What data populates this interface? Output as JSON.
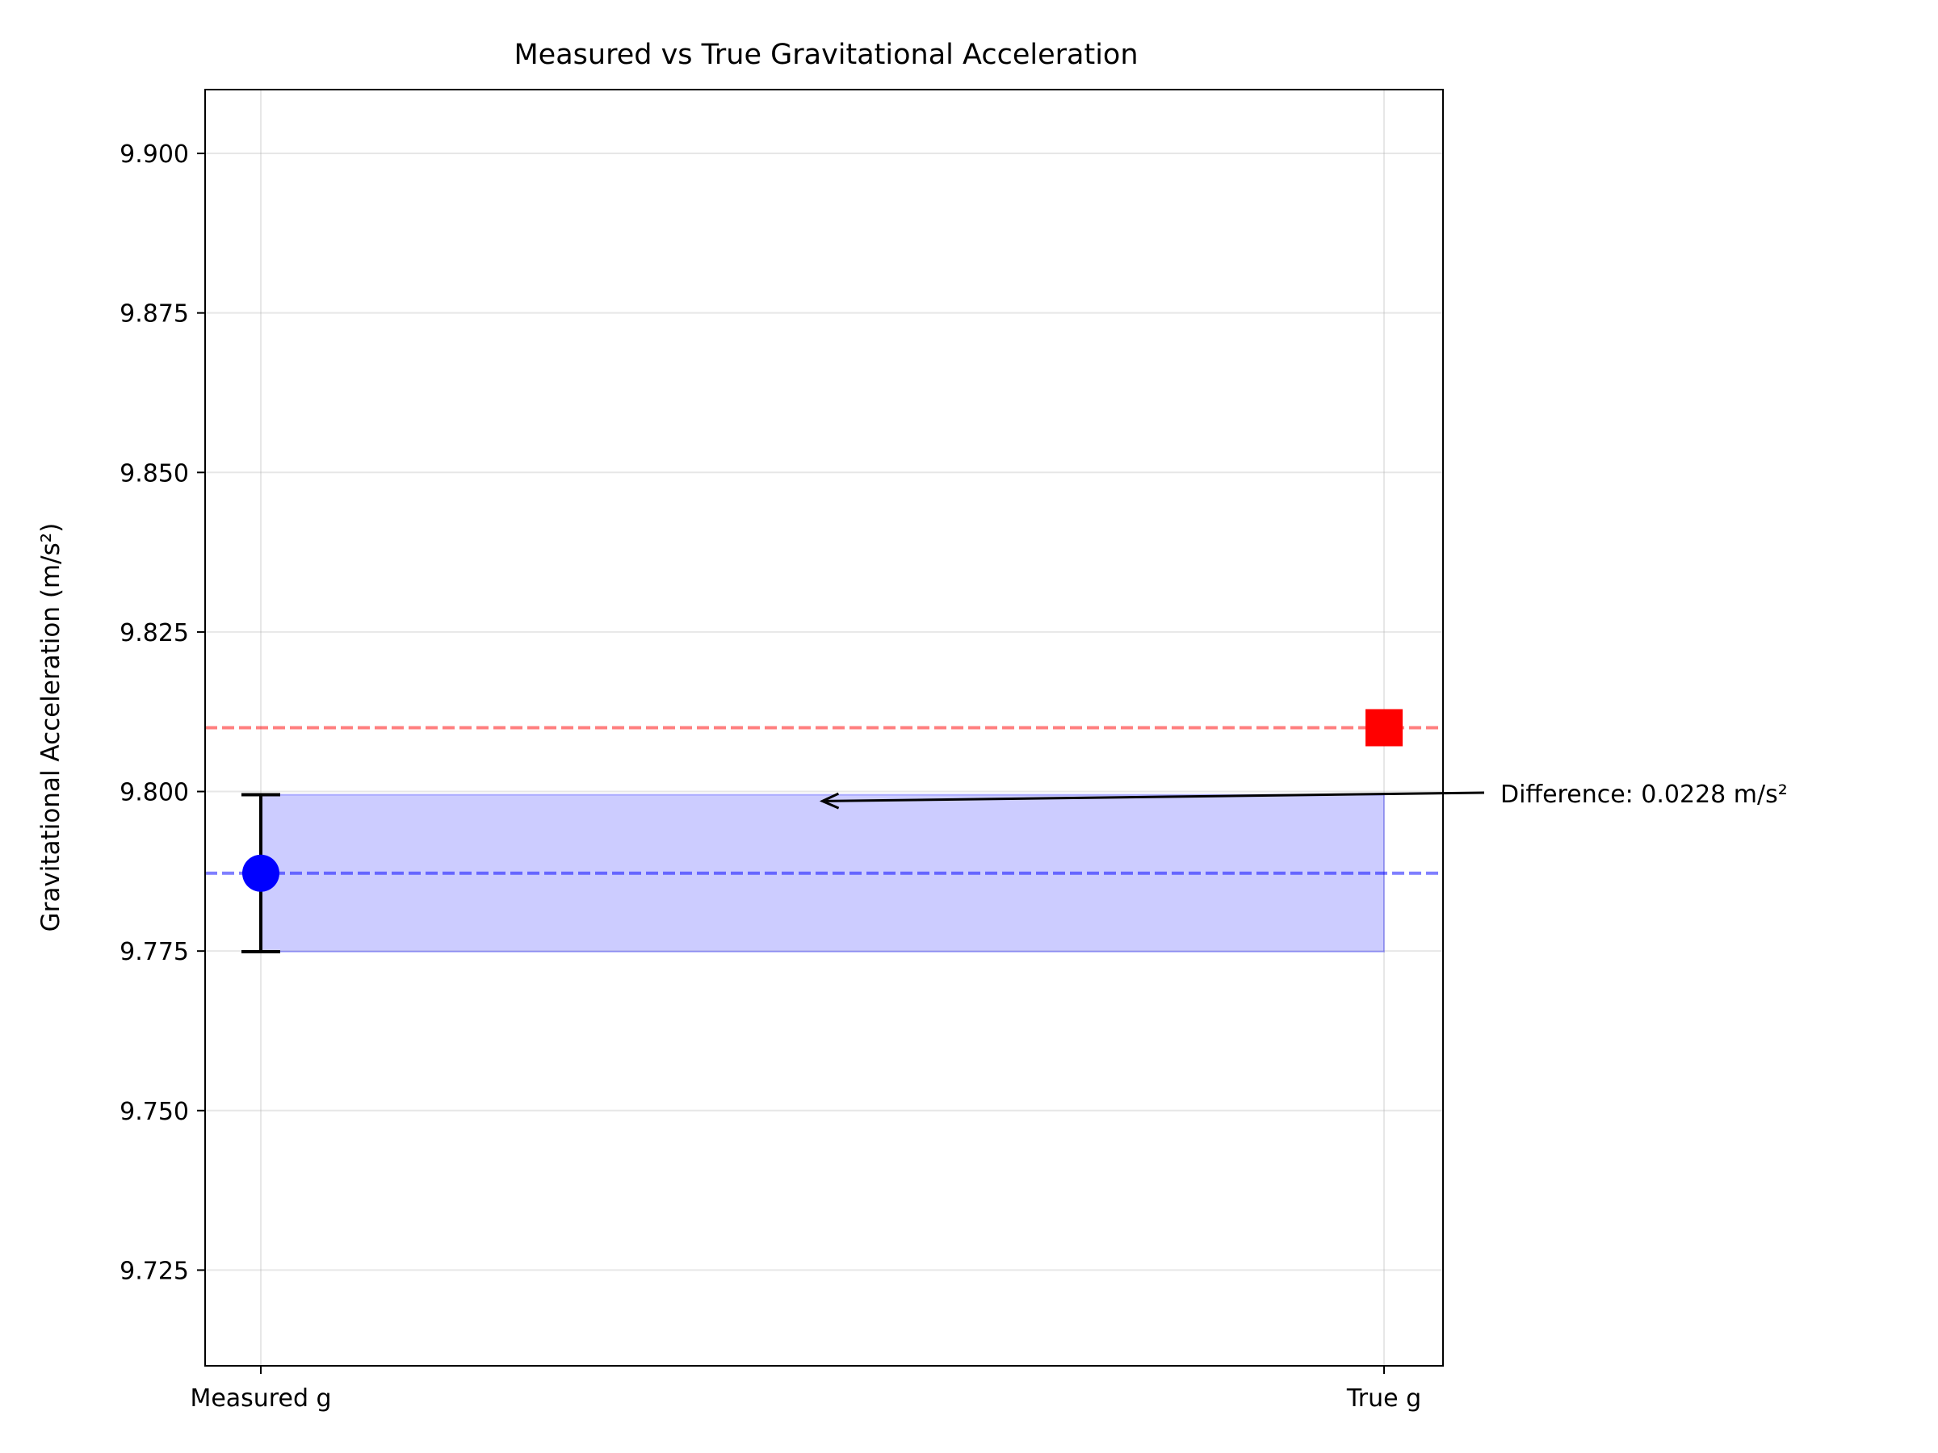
{
  "chart_data": {
    "type": "scatter",
    "title": "Measured vs True Gravitational Acceleration",
    "xlabel": "",
    "ylabel": "Gravitational Acceleration (m/s²)",
    "categories": [
      "Measured g",
      "True g"
    ],
    "ylim": [
      9.71,
      9.91
    ],
    "yticks": [
      9.725,
      9.75,
      9.775,
      9.8,
      9.825,
      9.85,
      9.875,
      9.9
    ],
    "ytick_labels": [
      "9.725",
      "9.750",
      "9.775",
      "9.800",
      "9.825",
      "9.850",
      "9.875",
      "9.900"
    ],
    "grid": true,
    "measured": {
      "value": 9.7872,
      "error": 0.0123,
      "color": "#0000ff",
      "marker": "circle"
    },
    "true_value": {
      "value": 9.81,
      "color": "#ff0000",
      "marker": "square"
    },
    "reference_lines": [
      {
        "value": 9.81,
        "color": "#ff0000",
        "style": "dashed",
        "alpha": 0.5
      },
      {
        "value": 9.7872,
        "color": "#0000ff",
        "style": "dashed",
        "alpha": 0.5
      }
    ],
    "band": {
      "from": 9.7749,
      "to": 9.7995,
      "color": "#0000ff",
      "alpha": 0.2
    },
    "annotation": {
      "text": "Difference: 0.0228 m/s²",
      "x_category": 0.5,
      "y": 9.7985
    }
  }
}
